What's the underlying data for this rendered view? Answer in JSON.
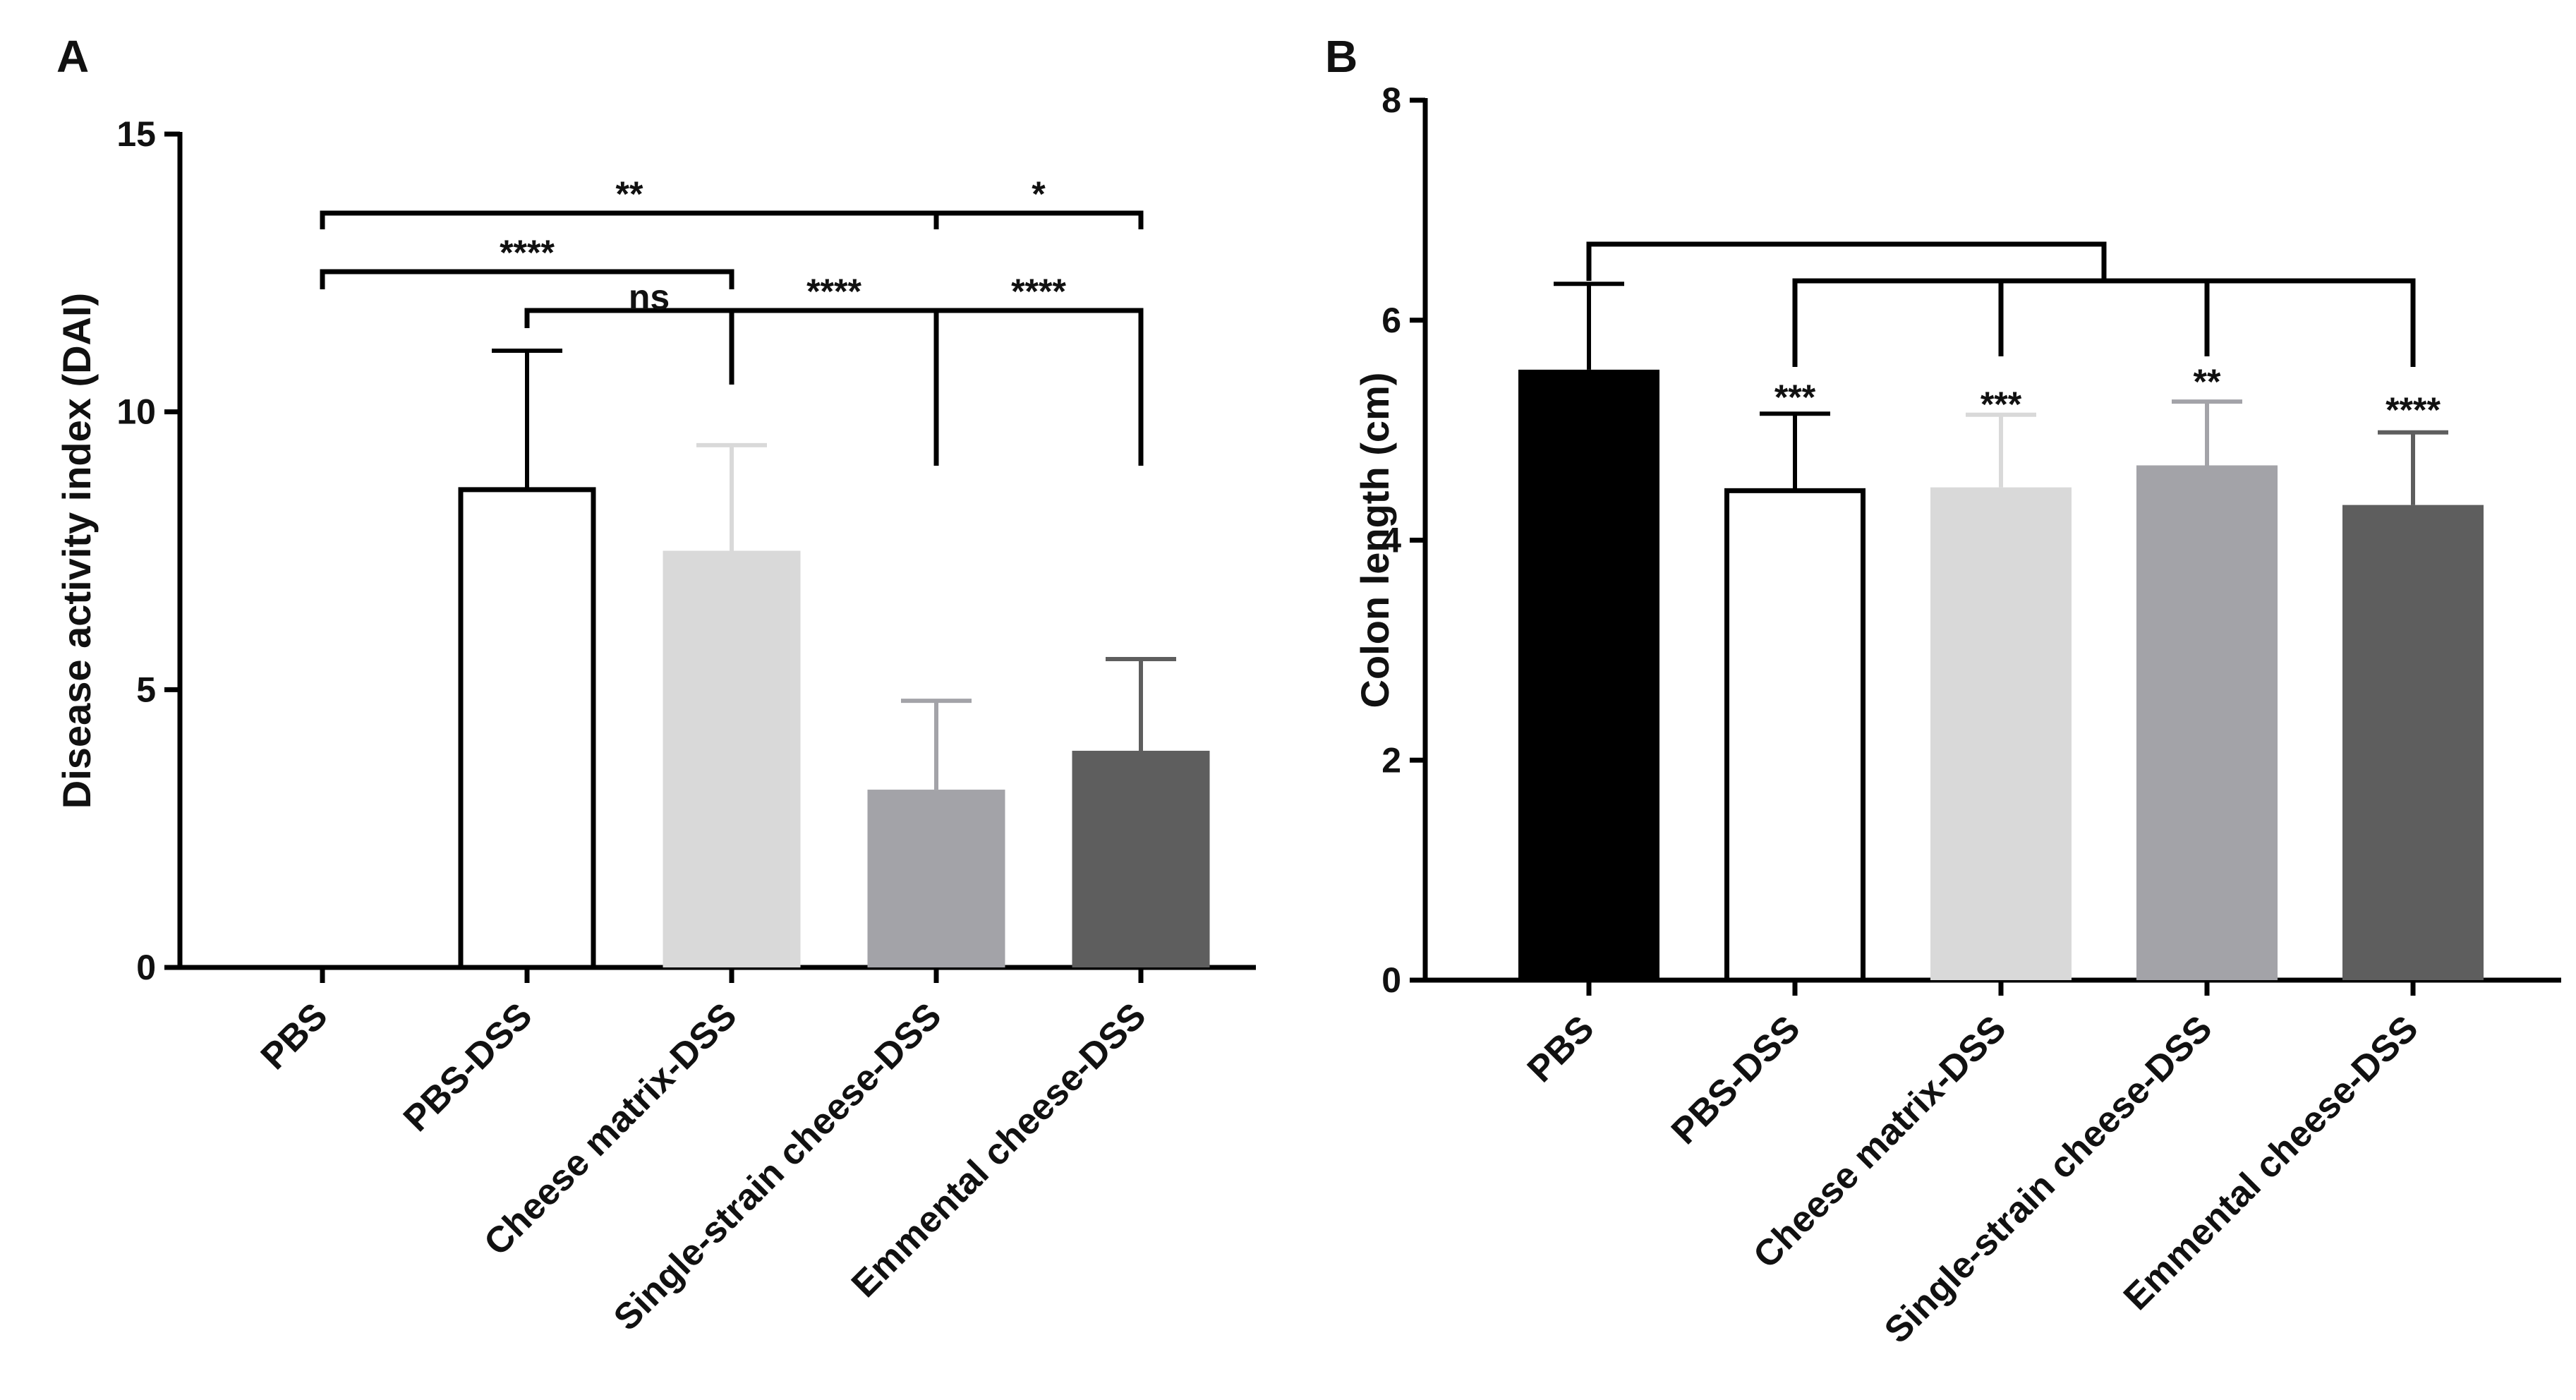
{
  "chart_data": [
    {
      "type": "bar",
      "panel": "A",
      "title": "",
      "xlabel": "",
      "ylabel": "Disease activity index (DAI)",
      "ylim": [
        0,
        15
      ],
      "yticks": [
        0,
        5,
        10,
        15
      ],
      "grid": false,
      "categories": [
        "PBS",
        "PBS-DSS",
        "Cheese matrix-DSS",
        "Single-strain cheese-DSS",
        "Emmental cheese-DSS"
      ],
      "values": [
        0,
        8.6,
        7.5,
        3.2,
        3.9
      ],
      "errors": [
        0,
        2.5,
        1.9,
        1.6,
        1.65
      ],
      "colors": [
        "#000000",
        "#ffffff",
        "#d9d9d9",
        "#a3a3a8",
        "#5e5e5e"
      ],
      "significance": [
        {
          "from": 0,
          "to": 3,
          "label": "**"
        },
        {
          "from": 3,
          "to": 4,
          "label": "*"
        },
        {
          "from": 0,
          "to": 2,
          "label": "****"
        },
        {
          "from": 1,
          "to": 2,
          "label": "ns"
        },
        {
          "from": 1,
          "to": 3,
          "label": "****"
        },
        {
          "from": 1,
          "to": 4,
          "label": "****"
        }
      ]
    },
    {
      "type": "bar",
      "panel": "B",
      "title": "",
      "xlabel": "",
      "ylabel": "Colon length (cm)",
      "ylim": [
        0,
        8
      ],
      "yticks": [
        0,
        2,
        4,
        6,
        8
      ],
      "grid": false,
      "categories": [
        "PBS",
        "PBS-DSS",
        "Cheese matrix-DSS",
        "Single-strain cheese-DSS",
        "Emmental cheese-DSS"
      ],
      "values": [
        5.55,
        4.45,
        4.48,
        4.68,
        4.32
      ],
      "errors": [
        0.78,
        0.7,
        0.66,
        0.58,
        0.66
      ],
      "colors": [
        "#000000",
        "#ffffff",
        "#d9d9d9",
        "#a3a3a8",
        "#5e5e5e"
      ],
      "significance_labels": [
        "",
        "***",
        "***",
        "**",
        "****"
      ]
    }
  ]
}
